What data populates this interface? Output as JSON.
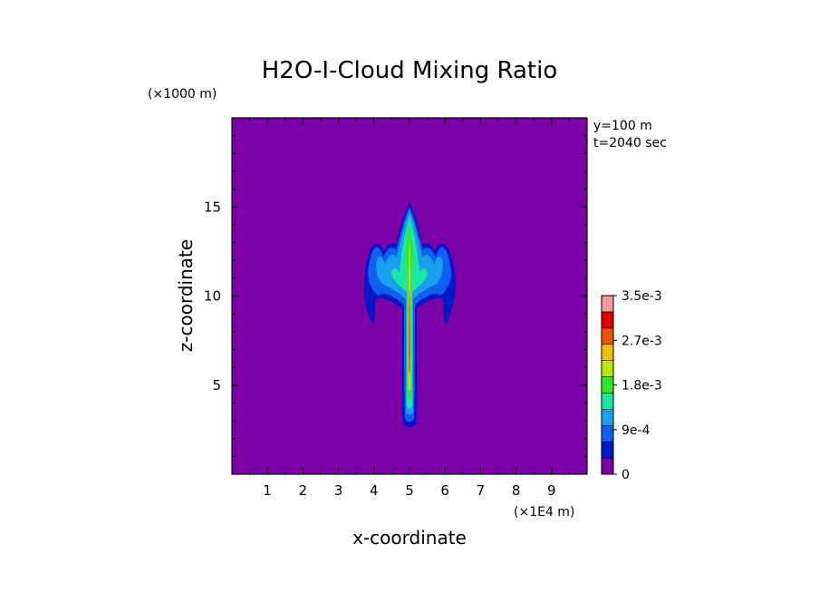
{
  "chart_data": {
    "type": "heatmap",
    "title": "H2O-I-Cloud Mixing Ratio",
    "xlabel": "x-coordinate",
    "ylabel": "z-coordinate",
    "x_unit": "(×1E4 m)",
    "y_unit": "(×1000 m)",
    "annotations": [
      "y=100 m",
      "t=2040 sec"
    ],
    "xlim": [
      0,
      10
    ],
    "ylim": [
      0,
      20
    ],
    "x_ticks": [
      1,
      2,
      3,
      4,
      5,
      6,
      7,
      8,
      9
    ],
    "y_ticks": [
      5,
      10,
      15
    ],
    "colorbar": {
      "levels": [
        0,
        0.00045,
        0.0009,
        0.00135,
        0.0018,
        0.00225,
        0.0027,
        0.00315,
        0.0035
      ],
      "tick_labels": [
        "0",
        "9e-4",
        "1.8e-3",
        "2.7e-3",
        "3.5e-3"
      ],
      "colors": [
        "#7b00a8",
        "#0018c8",
        "#1060f0",
        "#18a0f0",
        "#18e8a0",
        "#30e820",
        "#b8e800",
        "#f0c000",
        "#f05000",
        "#e00000",
        "#f89898"
      ]
    },
    "cloud": {
      "stem": {
        "x": 5.0,
        "z_bottom": 2.8,
        "z_top": 15.2
      },
      "anvil": {
        "x_min": 3.7,
        "x_max": 6.3,
        "z_min": 9.5,
        "z_max": 13.0
      },
      "max_value_region": {
        "x": 5.0,
        "z": [
          4,
          11
        ]
      }
    }
  }
}
